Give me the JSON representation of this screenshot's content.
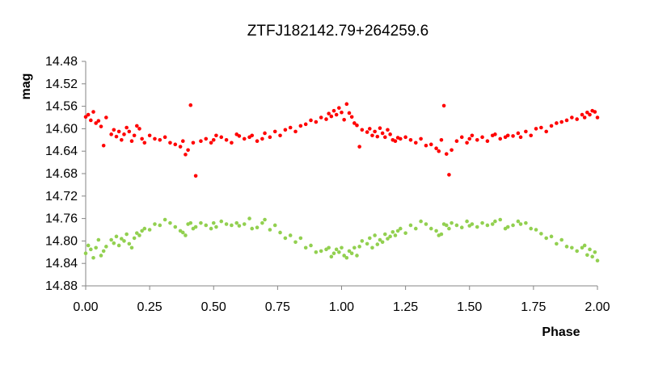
{
  "chart_data": {
    "type": "scatter",
    "title": "ZTFJ182142.79+264259.6",
    "xlabel": "Phase",
    "ylabel": "mag",
    "xlim": [
      0.0,
      2.0
    ],
    "ylim": [
      14.48,
      14.88
    ],
    "y_inverted": true,
    "grid": false,
    "legend": "none",
    "x_ticks": [
      "0.00",
      "0.25",
      "0.50",
      "0.75",
      "1.00",
      "1.25",
      "1.50",
      "1.75",
      "2.00"
    ],
    "y_ticks": [
      "14.48",
      "14.52",
      "14.56",
      "14.60",
      "14.64",
      "14.68",
      "14.72",
      "14.76",
      "14.80",
      "14.84",
      "14.88"
    ],
    "series": [
      {
        "color": "#ff0000",
        "x": [
          0.0,
          0.01,
          0.02,
          0.03,
          0.04,
          0.05,
          0.06,
          0.07,
          0.08,
          0.1,
          0.11,
          0.12,
          0.13,
          0.14,
          0.15,
          0.16,
          0.17,
          0.18,
          0.19,
          0.2,
          0.21,
          0.22,
          0.23,
          0.25,
          0.27,
          0.29,
          0.31,
          0.33,
          0.35,
          0.37,
          0.38,
          0.39,
          0.4,
          0.41,
          0.42,
          0.43,
          0.45,
          0.47,
          0.49,
          0.5,
          0.51,
          0.53,
          0.55,
          0.57,
          0.59,
          0.6,
          0.62,
          0.64,
          0.65,
          0.67,
          0.69,
          0.7,
          0.72,
          0.74,
          0.76,
          0.78,
          0.8,
          0.82,
          0.84,
          0.86,
          0.88,
          0.9,
          0.92,
          0.94,
          0.95,
          0.96,
          0.97,
          0.98,
          0.99,
          1.0,
          1.01,
          1.02,
          1.03,
          1.04,
          1.05,
          1.06,
          1.07,
          1.08,
          1.1,
          1.11,
          1.12,
          1.13,
          1.14,
          1.15,
          1.16,
          1.17,
          1.18,
          1.19,
          1.2,
          1.21,
          1.22,
          1.23,
          1.25,
          1.27,
          1.29,
          1.31,
          1.33,
          1.35,
          1.37,
          1.38,
          1.39,
          1.4,
          1.41,
          1.42,
          1.43,
          1.45,
          1.47,
          1.49,
          1.5,
          1.51,
          1.53,
          1.55,
          1.57,
          1.59,
          1.6,
          1.62,
          1.64,
          1.65,
          1.67,
          1.69,
          1.7,
          1.72,
          1.74,
          1.76,
          1.78,
          1.8,
          1.82,
          1.84,
          1.86,
          1.88,
          1.9,
          1.92,
          1.94,
          1.95,
          1.96,
          1.97,
          1.98,
          1.99,
          2.0
        ],
        "y": [
          14.579,
          14.575,
          14.585,
          14.57,
          14.59,
          14.586,
          14.596,
          14.63,
          14.58,
          14.61,
          14.602,
          14.614,
          14.605,
          14.62,
          14.61,
          14.598,
          14.605,
          14.622,
          14.612,
          14.595,
          14.6,
          14.618,
          14.625,
          14.612,
          14.618,
          14.62,
          14.615,
          14.625,
          14.628,
          14.632,
          14.622,
          14.646,
          14.638,
          14.558,
          14.625,
          14.684,
          14.622,
          14.618,
          14.625,
          14.62,
          14.612,
          14.615,
          14.62,
          14.625,
          14.61,
          14.613,
          14.618,
          14.615,
          14.612,
          14.622,
          14.618,
          14.608,
          14.615,
          14.605,
          14.612,
          14.602,
          14.598,
          14.605,
          14.595,
          14.592,
          14.585,
          14.588,
          14.58,
          14.583,
          14.573,
          14.578,
          14.568,
          14.575,
          14.563,
          14.571,
          14.584,
          14.556,
          14.572,
          14.579,
          14.59,
          14.594,
          14.632,
          14.602,
          14.606,
          14.6,
          14.612,
          14.605,
          14.614,
          14.599,
          14.608,
          14.615,
          14.602,
          14.61,
          14.62,
          14.622,
          14.616,
          14.618,
          14.615,
          14.62,
          14.625,
          14.618,
          14.63,
          14.628,
          14.635,
          14.64,
          14.62,
          14.559,
          14.645,
          14.682,
          14.638,
          14.622,
          14.615,
          14.625,
          14.618,
          14.612,
          14.62,
          14.615,
          14.622,
          14.612,
          14.61,
          14.618,
          14.615,
          14.612,
          14.613,
          14.608,
          14.615,
          14.605,
          14.612,
          14.6,
          14.598,
          14.605,
          14.595,
          14.59,
          14.588,
          14.585,
          14.58,
          14.583,
          14.575,
          14.58,
          14.571,
          14.575,
          14.568,
          14.57,
          14.58
        ]
      },
      {
        "color": "#92d050",
        "x": [
          0.0,
          0.01,
          0.02,
          0.03,
          0.04,
          0.05,
          0.06,
          0.07,
          0.08,
          0.1,
          0.11,
          0.12,
          0.13,
          0.14,
          0.15,
          0.16,
          0.17,
          0.18,
          0.19,
          0.2,
          0.21,
          0.22,
          0.23,
          0.25,
          0.27,
          0.29,
          0.31,
          0.33,
          0.35,
          0.37,
          0.38,
          0.39,
          0.4,
          0.41,
          0.42,
          0.43,
          0.45,
          0.47,
          0.49,
          0.5,
          0.51,
          0.53,
          0.55,
          0.57,
          0.59,
          0.6,
          0.62,
          0.64,
          0.65,
          0.67,
          0.69,
          0.7,
          0.72,
          0.74,
          0.76,
          0.78,
          0.8,
          0.82,
          0.84,
          0.86,
          0.88,
          0.9,
          0.92,
          0.94,
          0.95,
          0.96,
          0.97,
          0.98,
          0.99,
          1.0,
          1.01,
          1.02,
          1.03,
          1.04,
          1.05,
          1.06,
          1.07,
          1.08,
          1.1,
          1.11,
          1.12,
          1.13,
          1.14,
          1.15,
          1.16,
          1.17,
          1.18,
          1.19,
          1.2,
          1.21,
          1.22,
          1.23,
          1.25,
          1.27,
          1.29,
          1.31,
          1.33,
          1.35,
          1.37,
          1.38,
          1.39,
          1.4,
          1.41,
          1.42,
          1.43,
          1.45,
          1.47,
          1.49,
          1.5,
          1.51,
          1.53,
          1.55,
          1.57,
          1.59,
          1.6,
          1.62,
          1.64,
          1.65,
          1.67,
          1.69,
          1.7,
          1.72,
          1.74,
          1.76,
          1.78,
          1.8,
          1.82,
          1.84,
          1.86,
          1.88,
          1.9,
          1.92,
          1.94,
          1.95,
          1.96,
          1.97,
          1.98,
          1.99,
          2.0
        ],
        "y": [
          14.822,
          14.808,
          14.815,
          14.83,
          14.812,
          14.798,
          14.826,
          14.818,
          14.81,
          14.798,
          14.804,
          14.792,
          14.808,
          14.796,
          14.8,
          14.788,
          14.805,
          14.812,
          14.795,
          14.786,
          14.79,
          14.782,
          14.778,
          14.78,
          14.77,
          14.772,
          14.762,
          14.768,
          14.775,
          14.782,
          14.785,
          14.79,
          14.77,
          14.768,
          14.778,
          14.775,
          14.768,
          14.772,
          14.778,
          14.768,
          14.775,
          14.765,
          14.77,
          14.772,
          14.768,
          14.773,
          14.77,
          14.76,
          14.778,
          14.776,
          14.768,
          14.762,
          14.78,
          14.772,
          14.785,
          14.795,
          14.79,
          14.802,
          14.795,
          14.812,
          14.808,
          14.82,
          14.818,
          14.815,
          14.812,
          14.828,
          14.822,
          14.815,
          14.82,
          14.812,
          14.826,
          14.83,
          14.818,
          14.822,
          14.812,
          14.826,
          14.81,
          14.8,
          14.805,
          14.795,
          14.812,
          14.79,
          14.806,
          14.798,
          14.802,
          14.788,
          14.796,
          14.792,
          14.784,
          14.79,
          14.782,
          14.778,
          14.786,
          14.772,
          14.778,
          14.765,
          14.77,
          14.778,
          14.782,
          14.79,
          14.788,
          14.77,
          14.772,
          14.778,
          14.768,
          14.772,
          14.776,
          14.765,
          14.773,
          14.77,
          14.775,
          14.768,
          14.772,
          14.77,
          14.765,
          14.762,
          14.778,
          14.775,
          14.772,
          14.765,
          14.77,
          14.768,
          14.778,
          14.78,
          14.787,
          14.795,
          14.792,
          14.805,
          14.798,
          14.81,
          14.812,
          14.818,
          14.812,
          14.808,
          14.825,
          14.815,
          14.828,
          14.82,
          14.835
        ]
      }
    ]
  }
}
